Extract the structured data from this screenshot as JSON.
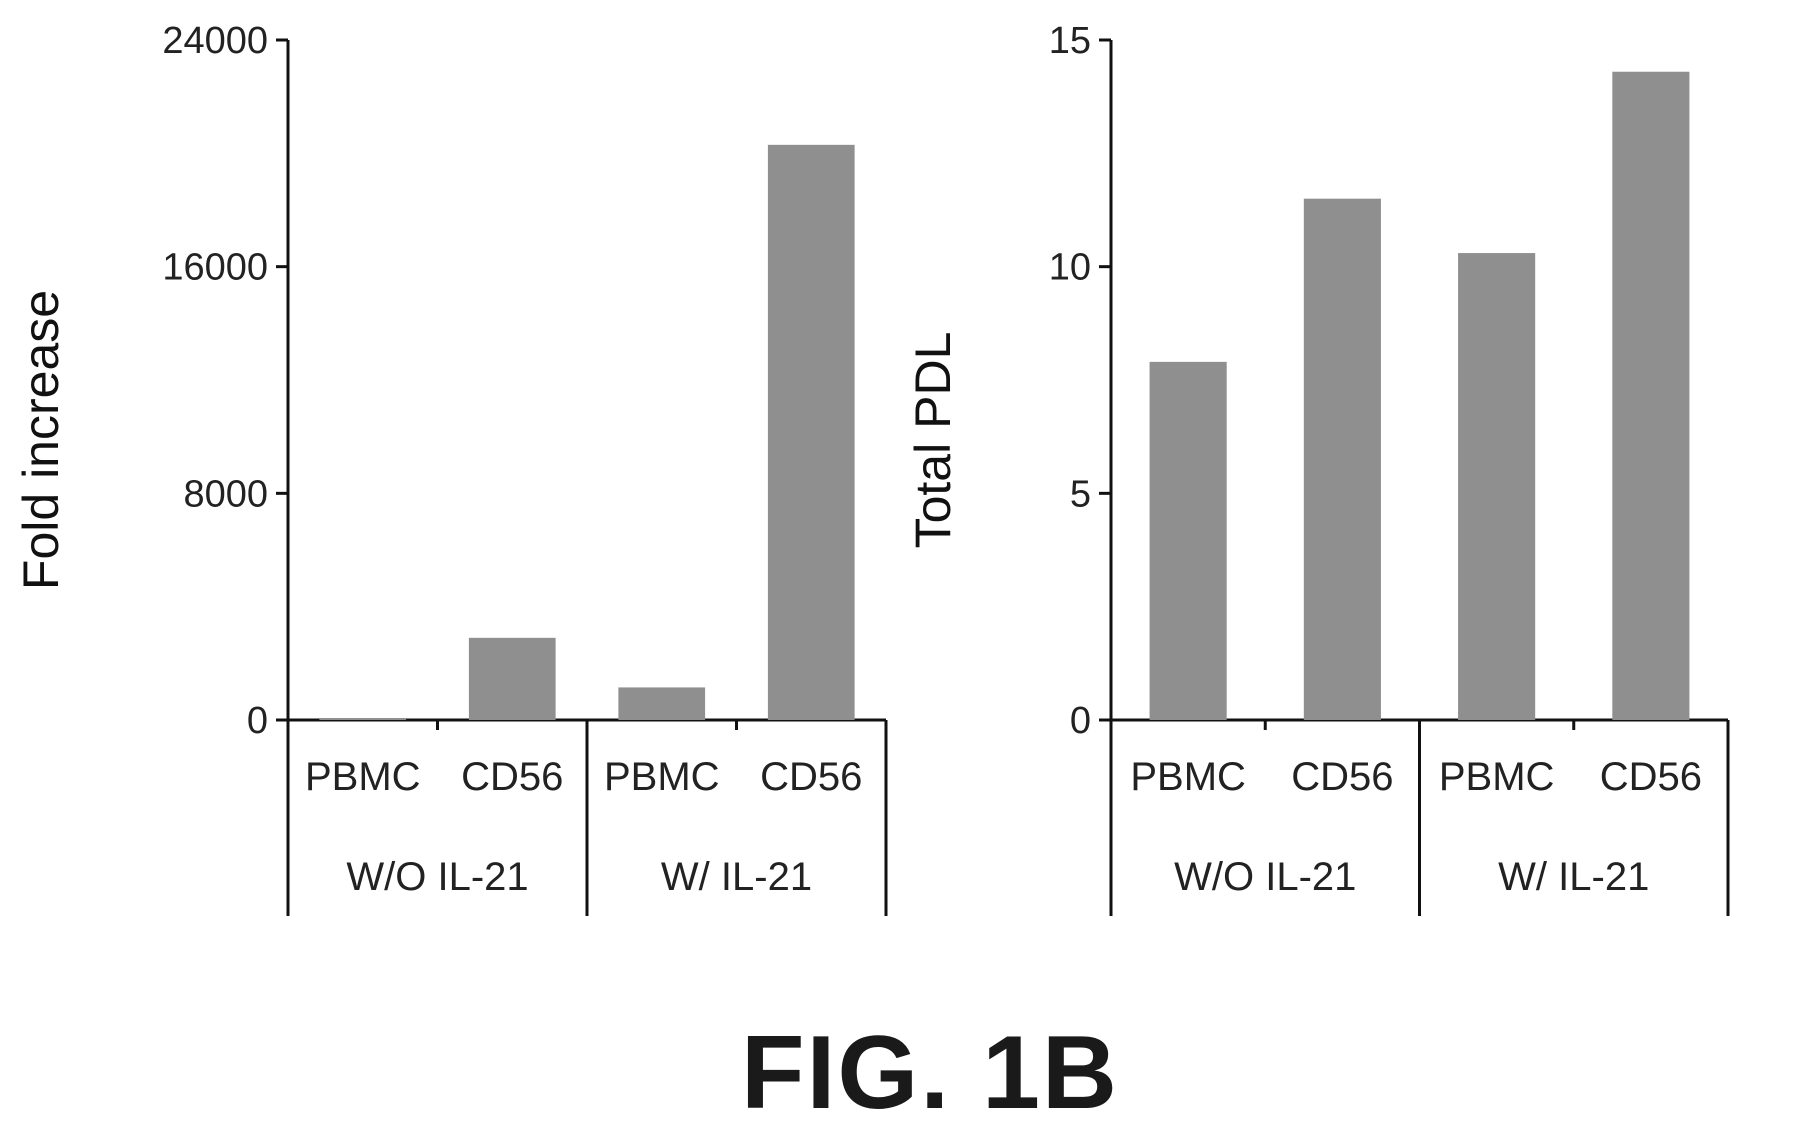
{
  "figure_label": "FIG. 1B",
  "colors": {
    "bar": "#8f8f8f",
    "axis": "#111111"
  },
  "chart_data": [
    {
      "type": "bar",
      "ylabel": "Fold increase",
      "ylim": [
        0,
        24000
      ],
      "yticks": [
        "0",
        "8000",
        "16000",
        "24000"
      ],
      "categories": [
        "PBMC",
        "CD56",
        "PBMC",
        "CD56"
      ],
      "groups": [
        {
          "label": "W/O IL-21",
          "categories": [
            0,
            1
          ]
        },
        {
          "label": "W/ IL-21",
          "categories": [
            2,
            3
          ]
        }
      ],
      "values": [
        60,
        2900,
        1150,
        20300
      ]
    },
    {
      "type": "bar",
      "ylabel": "Total PDL",
      "ylim": [
        0,
        15
      ],
      "yticks": [
        "0",
        "5",
        "10",
        "15"
      ],
      "categories": [
        "PBMC",
        "CD56",
        "PBMC",
        "CD56"
      ],
      "groups": [
        {
          "label": "W/O IL-21",
          "categories": [
            0,
            1
          ]
        },
        {
          "label": "W/ IL-21",
          "categories": [
            2,
            3
          ]
        }
      ],
      "values": [
        7.9,
        11.5,
        10.3,
        14.3
      ]
    }
  ]
}
